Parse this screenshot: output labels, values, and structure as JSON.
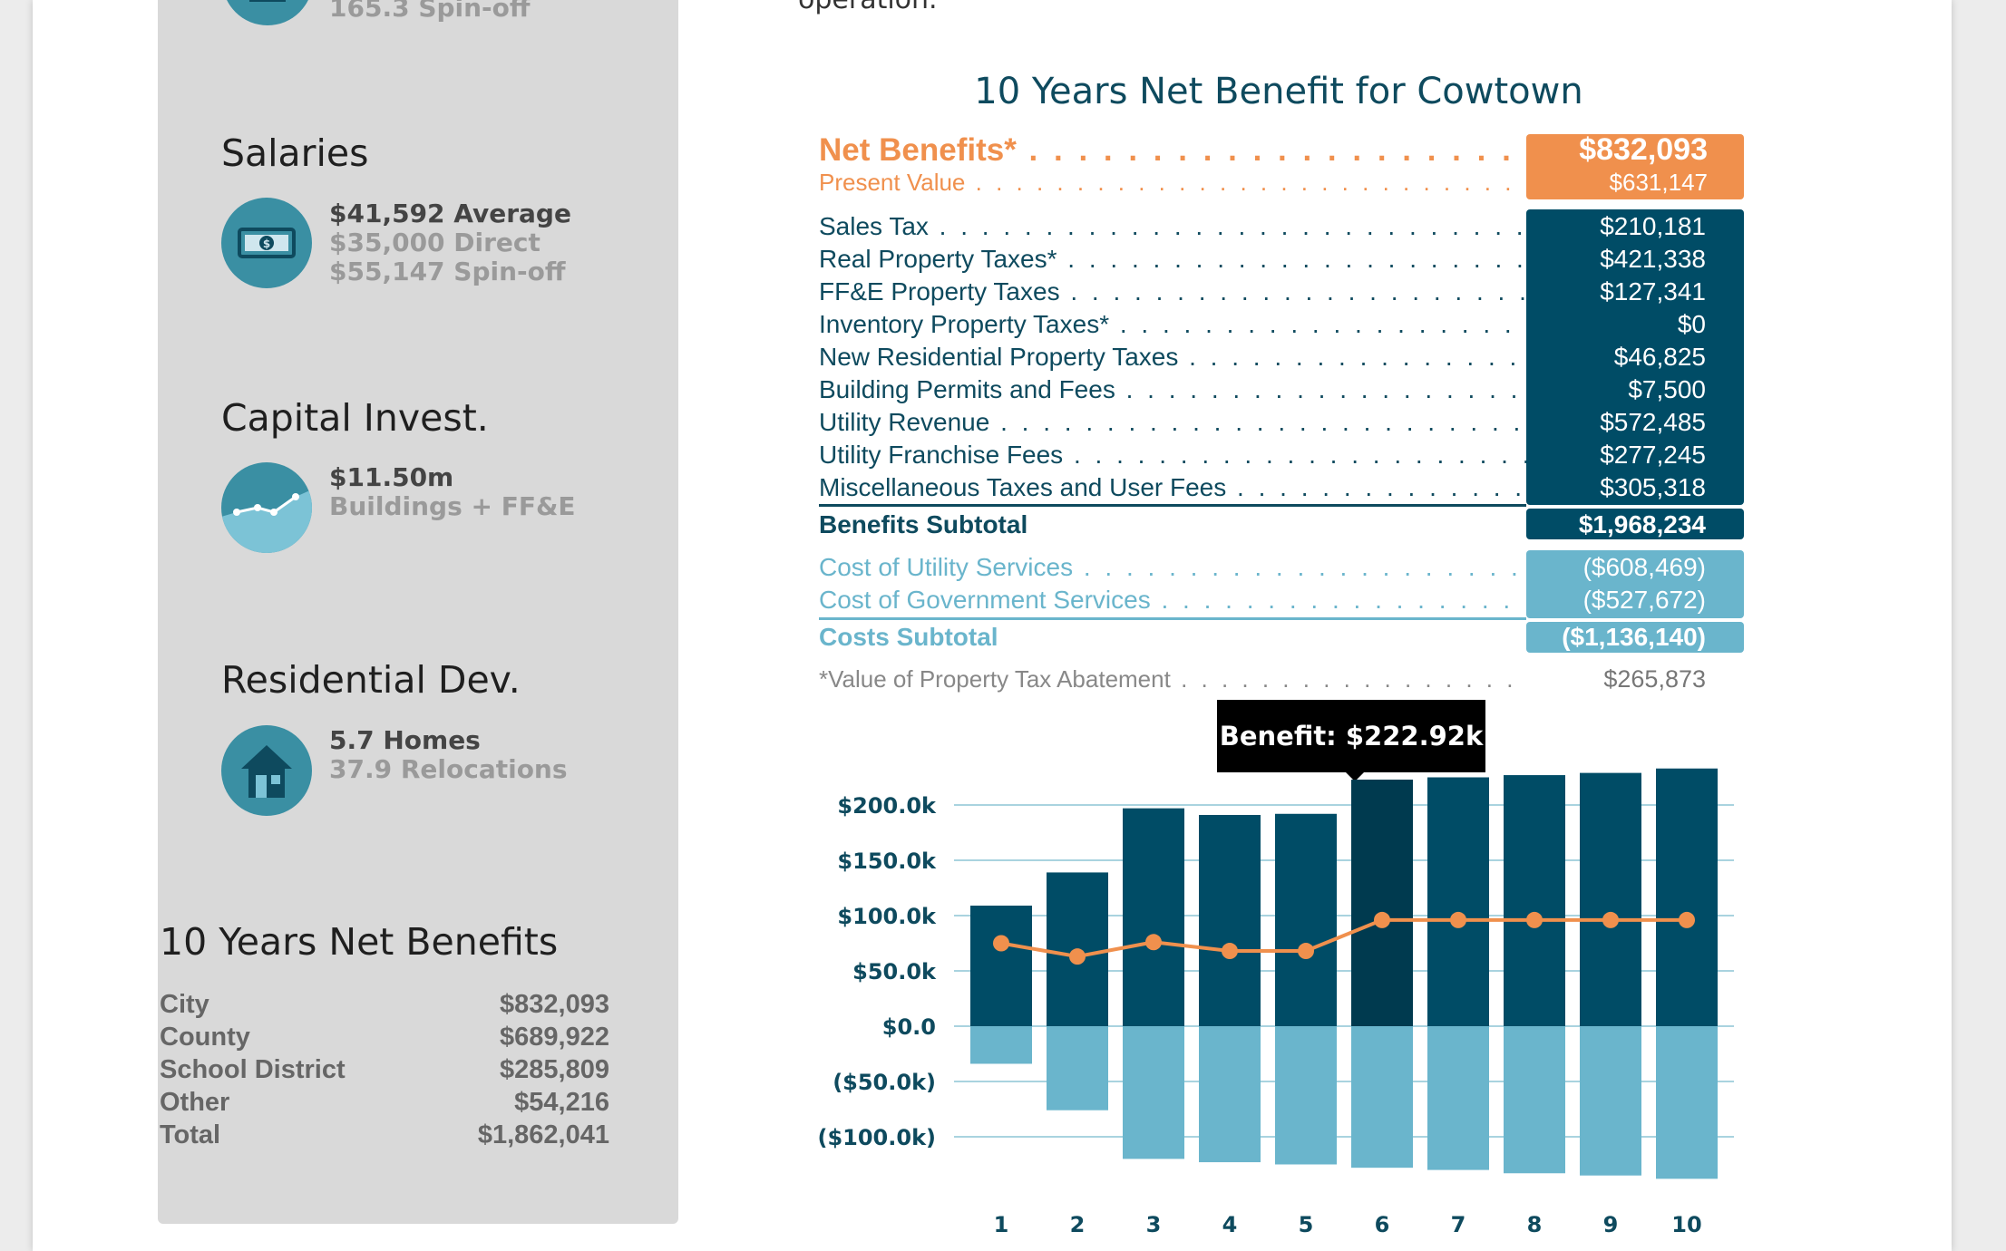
{
  "sidebar": {
    "top_partial": "165.3 Spin-off",
    "salaries": {
      "title": "Salaries",
      "line1": "$41,592 Average",
      "line2": "$35,000 Direct",
      "line3": "$55,147 Spin-off",
      "icon": "money-icon"
    },
    "capital": {
      "title": "Capital Invest.",
      "line1": "$11.50m",
      "line2": "Buildings + FF&E",
      "icon": "chart-area-icon"
    },
    "residential": {
      "title": "Residential Dev.",
      "line1": "5.7 Homes",
      "line2": "37.9 Relocations",
      "icon": "house-icon"
    },
    "net_benefits": {
      "title": "10 Years Net Benefits",
      "rows": [
        {
          "label": "City",
          "value": "$832,093"
        },
        {
          "label": "County",
          "value": "$689,922"
        },
        {
          "label": "School District",
          "value": "$285,809"
        },
        {
          "label": "Other",
          "value": "$54,216"
        },
        {
          "label": "Total",
          "value": "$1,862,041"
        }
      ]
    }
  },
  "main": {
    "intro_partial": "operation.",
    "title": "10 Years Net Benefit for Cowtown",
    "net_benefits": {
      "label": "Net Benefits*",
      "value": "$832,093"
    },
    "present_value": {
      "label": "Present Value",
      "value": "$631,147"
    },
    "benefits": [
      {
        "label": "Sales Tax",
        "value": "$210,181"
      },
      {
        "label": "Real Property Taxes*",
        "value": "$421,338"
      },
      {
        "label": "FF&E Property Taxes",
        "value": "$127,341"
      },
      {
        "label": "Inventory Property Taxes*",
        "value": "$0"
      },
      {
        "label": "New Residential Property Taxes",
        "value": "$46,825"
      },
      {
        "label": "Building Permits and Fees",
        "value": "$7,500"
      },
      {
        "label": "Utility Revenue",
        "value": "$572,485"
      },
      {
        "label": "Utility Franchise Fees",
        "value": "$277,245"
      },
      {
        "label": "Miscellaneous Taxes and User Fees",
        "value": "$305,318"
      }
    ],
    "benefits_subtotal": {
      "label": "Benefits Subtotal",
      "value": "$1,968,234"
    },
    "costs": [
      {
        "label": "Cost of Utility Services",
        "value": "($608,469)"
      },
      {
        "label": "Cost of Government Services",
        "value": "($527,672)"
      }
    ],
    "costs_subtotal": {
      "label": "Costs Subtotal",
      "value": "($1,136,140)"
    },
    "abatement": {
      "label": "*Value of Property Tax Abatement",
      "value": "$265,873"
    },
    "tooltip": "Benefit: $222.92k"
  },
  "colors": {
    "dark_teal": "#004c66",
    "highlight_teal": "#003a4f",
    "light_teal": "#6ab5cc",
    "orange": "#f0904d",
    "sidebar_bg": "#d9d9d9"
  },
  "chart_data": {
    "type": "bar",
    "categories": [
      "1",
      "2",
      "3",
      "4",
      "5",
      "6",
      "7",
      "8",
      "9",
      "10"
    ],
    "series": [
      {
        "values": [
          109,
          139,
          197,
          191,
          192,
          222.92,
          225,
          227,
          229,
          233
        ]
      },
      {
        "values": [
          -34,
          -76,
          -120,
          -123,
          -125,
          -128,
          -130,
          -133,
          -135,
          -138
        ]
      },
      {
        "values": [
          75,
          63,
          76,
          68,
          68,
          96,
          96,
          96,
          96,
          96
        ]
      }
    ],
    "y_ticks": [
      "$200.0k",
      "$150.0k",
      "$100.0k",
      "$50.0k",
      "$0.0",
      "($50.0k)",
      "($100.0k)"
    ],
    "y_tick_values": [
      200,
      150,
      100,
      50,
      0,
      -50,
      -100
    ],
    "ylim": [
      -138,
      233
    ],
    "highlight_index": 5,
    "grid": true
  }
}
